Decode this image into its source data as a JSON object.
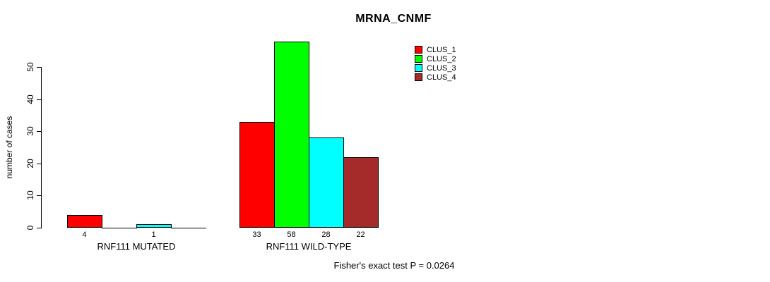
{
  "chart_data": {
    "type": "bar",
    "title": "MRNA_CNMF",
    "ylabel": "number of cases",
    "xlabel": "",
    "ylim": [
      0,
      58
    ],
    "yticks": [
      0,
      10,
      20,
      30,
      40,
      50
    ],
    "grid": false,
    "legend_position": "top-right",
    "axis_color": "#000000",
    "categories": [
      "RNF111 MUTATED",
      "RNF111 WILD-TYPE"
    ],
    "series": [
      {
        "name": "CLUS_1",
        "color": "#FF0000",
        "values": [
          4,
          33
        ]
      },
      {
        "name": "CLUS_2",
        "color": "#00FF00",
        "values": [
          0,
          58
        ]
      },
      {
        "name": "CLUS_3",
        "color": "#00FFFF",
        "values": [
          1,
          28
        ]
      },
      {
        "name": "CLUS_4",
        "color": "#A52A2A",
        "values": [
          0,
          22
        ]
      }
    ],
    "legend": [
      {
        "name": "CLUS_1",
        "color": "#FF0000"
      },
      {
        "name": "CLUS_2",
        "color": "#00FF00"
      },
      {
        "name": "CLUS_3",
        "color": "#00FFFF"
      },
      {
        "name": "CLUS_4",
        "color": "#A52A2A"
      }
    ],
    "bar_value_labels_shown": "only non-zero",
    "annotation": "Fisher's exact test P = 0.0264"
  }
}
